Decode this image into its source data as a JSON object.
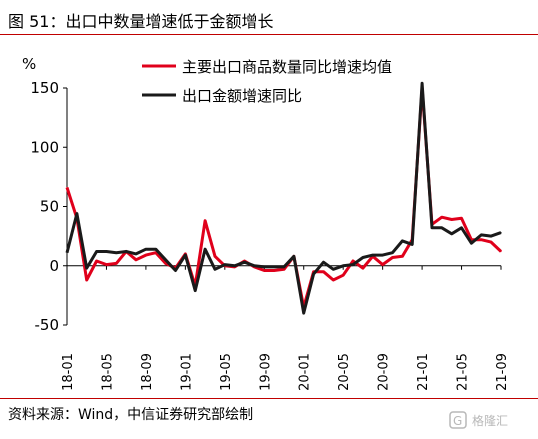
{
  "header": {
    "title": "图 51：出口中数量增速低于金额增长"
  },
  "footer": {
    "source": "资料来源：Wind，中信证券研究部绘制"
  },
  "watermark": {
    "text": "格隆汇"
  },
  "colors": {
    "rule": "#c00000",
    "volume": "#e0001b",
    "value": "#1a1a1a"
  },
  "chart_data": {
    "type": "line",
    "ylabel": "%",
    "ylim": [
      -50,
      150
    ],
    "yticks": [
      -50,
      0,
      50,
      100,
      150
    ],
    "xtick_labels": [
      "18-01",
      "18-05",
      "18-09",
      "19-01",
      "19-05",
      "19-09",
      "20-01",
      "20-05",
      "20-09",
      "21-01",
      "21-05",
      "21-09"
    ],
    "x": [
      "18-01",
      "18-02",
      "18-03",
      "18-04",
      "18-05",
      "18-06",
      "18-07",
      "18-08",
      "18-09",
      "18-10",
      "18-11",
      "18-12",
      "19-01",
      "19-02",
      "19-03",
      "19-04",
      "19-05",
      "19-06",
      "19-07",
      "19-08",
      "19-09",
      "19-10",
      "19-11",
      "19-12",
      "20-01",
      "20-02",
      "20-03",
      "20-04",
      "20-05",
      "20-06",
      "20-07",
      "20-08",
      "20-09",
      "20-10",
      "20-11",
      "20-12",
      "21-01",
      "21-02",
      "21-03",
      "21-04",
      "21-05",
      "21-06",
      "21-07",
      "21-08",
      "21-09"
    ],
    "legend_position": "top-right",
    "series": [
      {
        "name": "主要出口商品数量同比增速均值",
        "color": "#e0001b",
        "values": [
          66,
          40,
          -12,
          4,
          1,
          2,
          12,
          5,
          9,
          11,
          2,
          -2,
          10,
          -17,
          38,
          8,
          0,
          -1,
          4,
          -1,
          -4,
          -4,
          -3,
          8,
          -35,
          -5,
          -5,
          -12,
          -8,
          4,
          -2,
          8,
          1,
          7,
          8,
          22,
          150,
          35,
          41,
          39,
          40,
          22,
          22,
          20,
          12
        ]
      },
      {
        "name": "出口金额增速同比",
        "color": "#1a1a1a",
        "values": [
          11,
          44,
          -2,
          12,
          12,
          11,
          12,
          10,
          14,
          14,
          5,
          -4,
          9,
          -21,
          14,
          -3,
          1,
          0,
          3,
          0,
          -1,
          -1,
          -1,
          8,
          -40,
          -7,
          3,
          -3,
          0,
          1,
          7,
          9,
          9,
          11,
          21,
          18,
          154,
          32,
          32,
          27,
          32,
          19,
          26,
          25,
          28
        ]
      }
    ]
  }
}
